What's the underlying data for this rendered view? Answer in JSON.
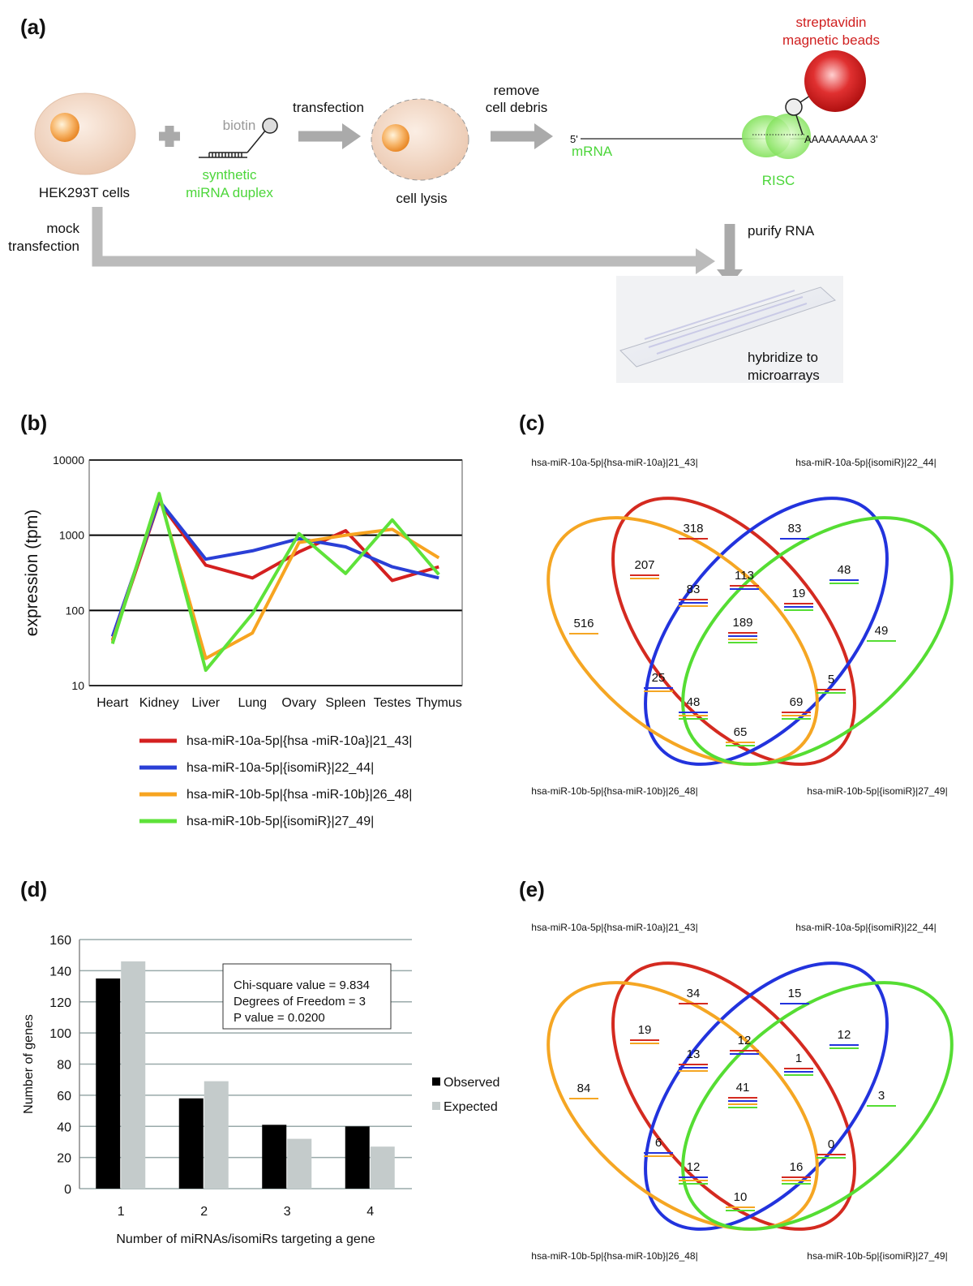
{
  "diagram": {
    "label": "(a)",
    "beads": [
      "streptavidin",
      "magnetic beads"
    ],
    "biotin": "biotin",
    "transfection": "transfection",
    "remove": [
      "remove",
      "cell debris"
    ],
    "five_prime": "5'",
    "mrna": "mRNA",
    "poly_a": "AAAAAAAAA 3'",
    "cells": "HEK293T cells",
    "duplex": [
      "synthetic",
      "miRNA duplex"
    ],
    "lysis": "cell lysis",
    "risc": "RISC",
    "mock": [
      "mock",
      "transfection"
    ],
    "purify": "purify RNA",
    "hybridize": [
      "hybridize to",
      "microarrays"
    ]
  },
  "chart_data": [
    {
      "type": "line",
      "panel_label": "(b)",
      "y_label": "expression (tpm)",
      "categories": [
        "Heart",
        "Kidney",
        "Liver",
        "Lung",
        "Ovary",
        "Spleen",
        "Testes",
        "Thymus"
      ],
      "series": [
        {
          "name": "hsa-miR-10a-5p|{hsa -miR-10a}|21_43|",
          "color": "#d42020",
          "values": [
            40,
            2800,
            400,
            270,
            600,
            1150,
            250,
            380
          ]
        },
        {
          "name": "hsa-miR-10a-5p|{isomiR}|22_44|",
          "color": "#2a3fd6",
          "values": [
            45,
            2900,
            480,
            620,
            900,
            700,
            380,
            270
          ]
        },
        {
          "name": "hsa-miR-10b-5p|{hsa -miR-10b}|26_48|",
          "color": "#f7a420",
          "values": [
            38,
            3400,
            23,
            50,
            800,
            1000,
            1200,
            500
          ]
        },
        {
          "name": "hsa-miR-10b-5p|{isomiR}|27_49|",
          "color": "#5ee23a",
          "values": [
            36,
            3600,
            16,
            90,
            1050,
            310,
            1600,
            300
          ]
        }
      ],
      "ylim": [
        10,
        10000
      ],
      "yticks": [
        10,
        100,
        1000,
        10000
      ],
      "log_y": true,
      "grid": true,
      "legend": "below"
    },
    {
      "type": "venn",
      "panel_label": "(c)",
      "sets": [
        {
          "name": "hsa-miR-10a-5p|{hsa-miR-10a}|21_43|",
          "color": "#d42a20"
        },
        {
          "name": "hsa-miR-10a-5p|{isomiR}|22_44|",
          "color": "#2233dd"
        },
        {
          "name": "hsa-miR-10b-5p|{hsa-miR-10b}|26_48|",
          "color": "#f5a623"
        },
        {
          "name": "hsa-miR-10b-5p|{isomiR}|27_49|",
          "color": "#55dd33"
        }
      ],
      "regions": [
        {
          "sets": [
            0
          ],
          "value": 318
        },
        {
          "sets": [
            1
          ],
          "value": 83
        },
        {
          "sets": [
            2
          ],
          "value": 516
        },
        {
          "sets": [
            3
          ],
          "value": 49
        },
        {
          "sets": [
            0,
            2
          ],
          "value": 207
        },
        {
          "sets": [
            0,
            1
          ],
          "value": 113
        },
        {
          "sets": [
            1,
            3
          ],
          "value": 48
        },
        {
          "sets": [
            0,
            1,
            2
          ],
          "value": 83
        },
        {
          "sets": [
            0,
            1,
            3
          ],
          "value": 19
        },
        {
          "sets": [
            0,
            1,
            2,
            3
          ],
          "value": 189
        },
        {
          "sets": [
            1,
            2
          ],
          "value": 25
        },
        {
          "sets": [
            0,
            3
          ],
          "value": 5
        },
        {
          "sets": [
            1,
            2,
            3
          ],
          "value": 48
        },
        {
          "sets": [
            0,
            2,
            3
          ],
          "value": 69
        },
        {
          "sets": [
            2,
            3
          ],
          "value": 65
        }
      ]
    },
    {
      "type": "bar",
      "panel_label": "(d)",
      "x_label": "Number of miRNAs/isomiRs  targeting a gene",
      "y_label": "Number of genes",
      "categories": [
        "1",
        "2",
        "3",
        "4"
      ],
      "series": [
        {
          "name": "Observed",
          "color": "#000000",
          "values": [
            135,
            58,
            41,
            40
          ]
        },
        {
          "name": "Expected",
          "color": "#c4cbcb",
          "values": [
            146,
            69,
            32,
            27
          ]
        }
      ],
      "ylim": [
        0,
        160
      ],
      "yticks": [
        0,
        20,
        40,
        60,
        80,
        100,
        120,
        140,
        160
      ],
      "grid": true,
      "legend": "right",
      "annotation": [
        "Chi-square value = 9.834",
        "Degrees of Freedom = 3",
        "P value = 0.0200"
      ]
    },
    {
      "type": "venn",
      "panel_label": "(e)",
      "sets": [
        {
          "name": "hsa-miR-10a-5p|{hsa-miR-10a}|21_43|",
          "color": "#d42a20"
        },
        {
          "name": "hsa-miR-10a-5p|{isomiR}|22_44|",
          "color": "#2233dd"
        },
        {
          "name": "hsa-miR-10b-5p|{hsa-miR-10b}|26_48|",
          "color": "#f5a623"
        },
        {
          "name": "hsa-miR-10b-5p|{isomiR}|27_49|",
          "color": "#55dd33"
        }
      ],
      "regions": [
        {
          "sets": [
            0
          ],
          "value": 34
        },
        {
          "sets": [
            1
          ],
          "value": 15
        },
        {
          "sets": [
            2
          ],
          "value": 84
        },
        {
          "sets": [
            3
          ],
          "value": 3
        },
        {
          "sets": [
            0,
            2
          ],
          "value": 19
        },
        {
          "sets": [
            0,
            1
          ],
          "value": 12
        },
        {
          "sets": [
            1,
            3
          ],
          "value": 12
        },
        {
          "sets": [
            0,
            1,
            2
          ],
          "value": 13
        },
        {
          "sets": [
            0,
            1,
            3
          ],
          "value": 1
        },
        {
          "sets": [
            0,
            1,
            2,
            3
          ],
          "value": 41
        },
        {
          "sets": [
            1,
            2
          ],
          "value": 6
        },
        {
          "sets": [
            0,
            3
          ],
          "value": 0
        },
        {
          "sets": [
            1,
            2,
            3
          ],
          "value": 12
        },
        {
          "sets": [
            0,
            2,
            3
          ],
          "value": 16
        },
        {
          "sets": [
            2,
            3
          ],
          "value": 10
        }
      ]
    }
  ]
}
